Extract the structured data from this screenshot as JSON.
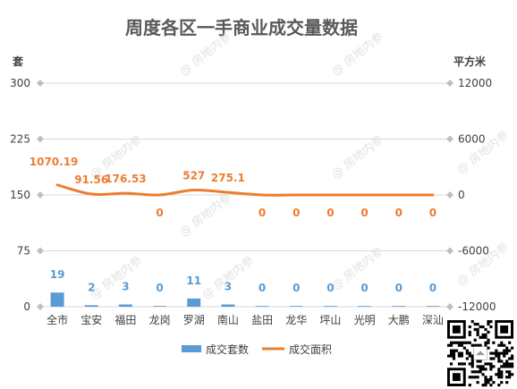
{
  "chart_data": {
    "type": "bar+line",
    "title": "周度各区一手商业成交量数据",
    "categories": [
      "全市",
      "宝安",
      "福田",
      "龙岗",
      "罗湖",
      "南山",
      "盐田",
      "龙华",
      "坪山",
      "光明",
      "大鹏",
      "深汕"
    ],
    "y_left": {
      "unit": "套",
      "ticks": [
        0,
        75,
        150,
        225,
        300
      ],
      "range": [
        0,
        300
      ]
    },
    "y_right": {
      "unit": "平方米",
      "ticks": [
        -12000,
        -6000,
        0,
        6000,
        12000
      ],
      "range": [
        -12000,
        12000
      ]
    },
    "series": [
      {
        "name": "成交套数",
        "type": "bar",
        "axis": "left",
        "color": "#5b9bd5",
        "values": [
          19,
          2,
          3,
          0,
          11,
          3,
          0,
          0,
          0,
          0,
          0,
          0
        ],
        "labels": [
          "19",
          "2",
          "3",
          "0",
          "11",
          "3",
          "0",
          "0",
          "0",
          "0",
          "0",
          "0"
        ]
      },
      {
        "name": "成交面积",
        "type": "line",
        "axis": "right",
        "color": "#ed7d31",
        "values": [
          1070.19,
          91.56,
          176.53,
          0,
          527,
          275.1,
          0,
          0,
          0,
          0,
          0,
          0
        ],
        "labels": [
          "1070.19",
          "91.56",
          "176.53",
          "0",
          "527",
          "275.1",
          "0",
          "0",
          "0",
          "0",
          "0",
          "0"
        ]
      }
    ],
    "legend_position": "bottom",
    "grid": true
  },
  "watermark": "@ 房地内参",
  "qr_icon": "qr-code-icon",
  "axis_icon": "diamond-marker-icon"
}
